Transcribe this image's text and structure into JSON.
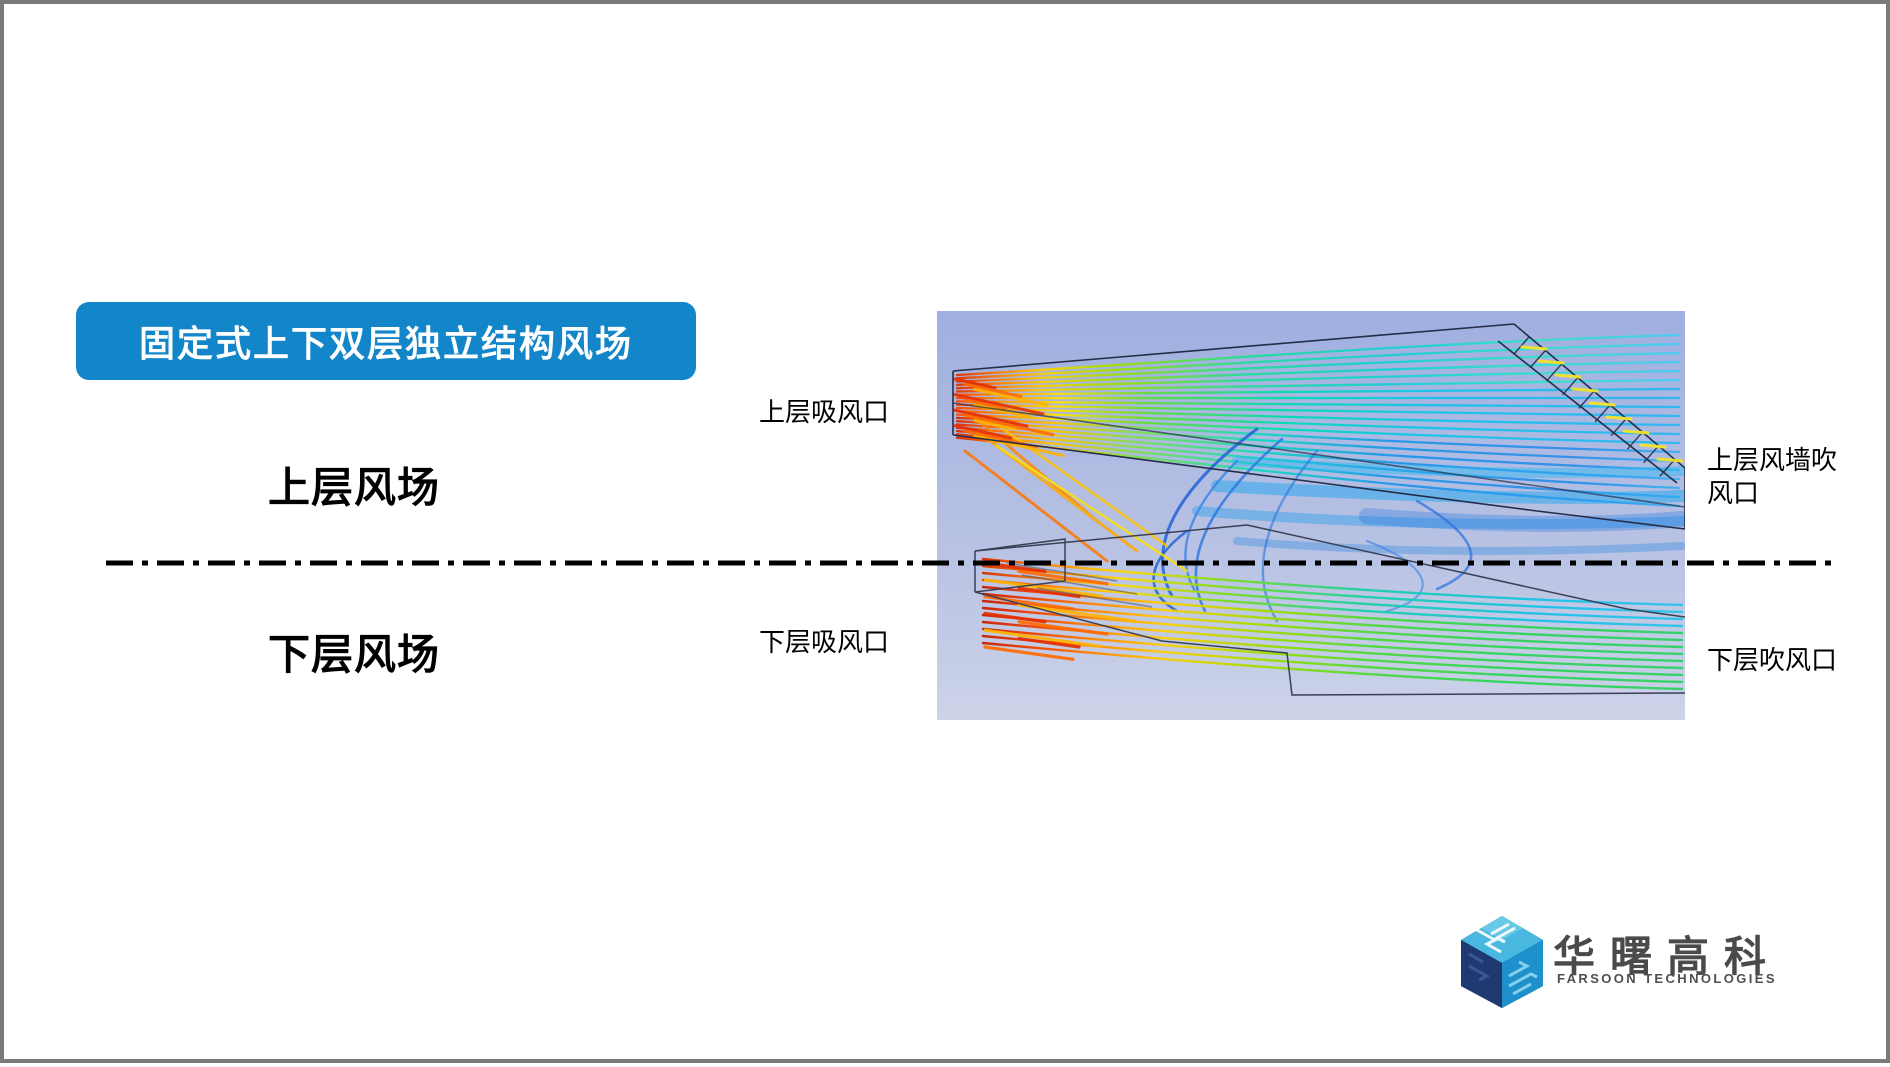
{
  "banner": {
    "label": "固定式上下双层独立结构风场",
    "bg_color": "#1286c8",
    "text_color": "#ffffff"
  },
  "sections": {
    "upper_label": "上层风场",
    "lower_label": "下层风场"
  },
  "callouts": {
    "upper_inlet": "上层吸风口",
    "lower_inlet": "下层吸风口",
    "upper_outlet": "上层风墙吹风口",
    "lower_outlet": "下层吹风口"
  },
  "divider": {
    "style": "dash-dot-centerline",
    "color": "#000000"
  },
  "cfd_image": {
    "content": "CFD streamline simulation of two stacked independent air-flow layers",
    "bg_top_color": "#9fafe0",
    "bg_bottom_color": "#ccd3e8",
    "hot_inlet_color": "#e63900",
    "cold_flow_color": "#2fb5ef",
    "wireframe_color": "#252e48"
  },
  "logo": {
    "company_cn": "华曙高科",
    "tagline": "FARSOON TECHNOLOGIES",
    "cube_left_face": "#1f3a70",
    "cube_top_face": "#5cc3e6",
    "cube_right_face": "#1e90cc"
  }
}
